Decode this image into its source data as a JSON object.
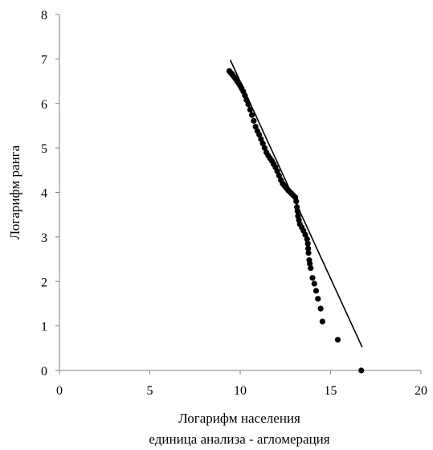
{
  "chart_data": {
    "type": "scatter",
    "title": "",
    "xlabel": "Логарифм населения",
    "xlabel2": "единица анализа - агломерация",
    "ylabel": "Логарифм ранга",
    "xlim": [
      0,
      20
    ],
    "ylim": [
      0,
      8
    ],
    "x_ticks": [
      "0",
      "5",
      "10",
      "15",
      "20"
    ],
    "y_ticks": [
      "0",
      "1",
      "2",
      "3",
      "4",
      "5",
      "6",
      "7",
      "8"
    ],
    "grid": false,
    "legend": "none",
    "series": [
      {
        "type": "scatter",
        "points": [
          [
            9.4,
            6.73
          ],
          [
            9.45,
            6.7
          ],
          [
            9.5,
            6.68
          ],
          [
            9.55,
            6.66
          ],
          [
            9.6,
            6.63
          ],
          [
            9.68,
            6.59
          ],
          [
            9.75,
            6.55
          ],
          [
            9.83,
            6.5
          ],
          [
            9.92,
            6.45
          ],
          [
            10.0,
            6.4
          ],
          [
            10.08,
            6.34
          ],
          [
            10.17,
            6.27
          ],
          [
            10.26,
            6.18
          ],
          [
            10.35,
            6.08
          ],
          [
            10.45,
            5.98
          ],
          [
            10.55,
            5.86
          ],
          [
            10.65,
            5.74
          ],
          [
            10.75,
            5.61
          ],
          [
            10.85,
            5.48
          ],
          [
            10.95,
            5.38
          ],
          [
            11.05,
            5.3
          ],
          [
            11.15,
            5.2
          ],
          [
            11.25,
            5.1
          ],
          [
            11.35,
            5.0
          ],
          [
            11.45,
            4.9
          ],
          [
            11.55,
            4.83
          ],
          [
            11.65,
            4.77
          ],
          [
            11.75,
            4.71
          ],
          [
            11.85,
            4.64
          ],
          [
            11.95,
            4.57
          ],
          [
            12.05,
            4.48
          ],
          [
            12.15,
            4.38
          ],
          [
            12.25,
            4.28
          ],
          [
            12.35,
            4.2
          ],
          [
            12.45,
            4.15
          ],
          [
            12.55,
            4.1
          ],
          [
            12.65,
            4.05
          ],
          [
            12.75,
            4.01
          ],
          [
            12.85,
            3.97
          ],
          [
            12.95,
            3.93
          ],
          [
            13.05,
            3.89
          ],
          [
            13.1,
            3.8
          ],
          [
            13.14,
            3.67
          ],
          [
            13.17,
            3.58
          ],
          [
            13.2,
            3.47
          ],
          [
            13.25,
            3.38
          ],
          [
            13.3,
            3.29
          ],
          [
            13.4,
            3.22
          ],
          [
            13.5,
            3.14
          ],
          [
            13.6,
            3.05
          ],
          [
            13.7,
            2.95
          ],
          [
            13.74,
            2.85
          ],
          [
            13.76,
            2.74
          ],
          [
            13.78,
            2.64
          ],
          [
            13.82,
            2.48
          ],
          [
            13.85,
            2.4
          ],
          [
            13.9,
            2.3
          ],
          [
            14.0,
            2.08
          ],
          [
            14.1,
            1.95
          ],
          [
            14.2,
            1.79
          ],
          [
            14.3,
            1.61
          ],
          [
            14.45,
            1.39
          ],
          [
            14.55,
            1.1
          ],
          [
            15.4,
            0.69
          ],
          [
            16.7,
            0.0
          ]
        ]
      },
      {
        "type": "line",
        "points": [
          [
            9.45,
            6.98
          ],
          [
            16.75,
            0.52
          ]
        ]
      }
    ]
  },
  "colors": {
    "marker": "#000000",
    "line": "#000000",
    "axis": "#7f7f7f"
  }
}
